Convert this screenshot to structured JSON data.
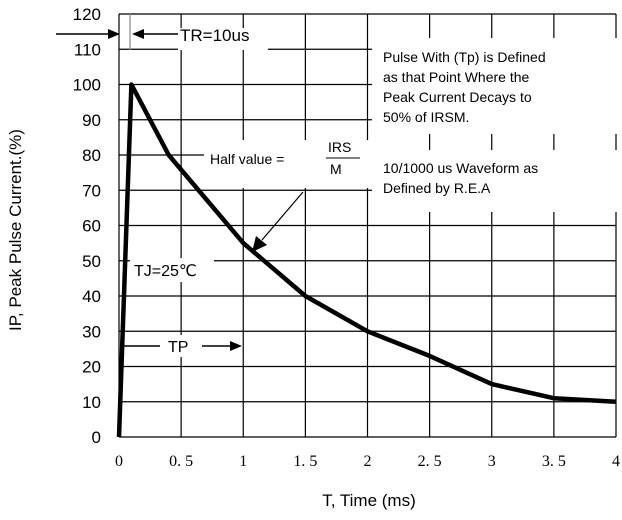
{
  "chart_data": {
    "type": "line",
    "xlabel": "T, Time (ms)",
    "ylabel": "IP, Peak Pulse Current.(%)",
    "xlim": [
      0,
      4
    ],
    "ylim": [
      0,
      120
    ],
    "x_ticks": [
      0,
      0.5,
      1,
      1.5,
      2,
      2.5,
      3,
      3.5,
      4
    ],
    "x_tick_labels": [
      "0",
      "0. 5",
      "1",
      "1. 5",
      "2",
      "2. 5",
      "3",
      "3. 5",
      "4"
    ],
    "y_ticks": [
      0,
      10,
      20,
      30,
      40,
      50,
      60,
      70,
      80,
      90,
      100,
      110,
      120
    ],
    "y_tick_labels": [
      "0",
      "10",
      "20",
      "30",
      "40",
      "50",
      "60",
      "70",
      "80",
      "90",
      "100",
      "110",
      "120"
    ],
    "grid": true,
    "series": [
      {
        "x": [
          0,
          0.1,
          0.4,
          1.0,
          1.5,
          2.0,
          2.5,
          3.0,
          3.5,
          4.0
        ],
        "y": [
          0,
          100,
          80,
          55,
          40,
          30,
          23,
          15,
          11,
          10
        ]
      }
    ],
    "annotations": {
      "tr_label": "TR=10us",
      "pulse_note": [
        "Pulse With (Tp) is Defined",
        "as that Point Where the",
        "Peak Current Decays to",
        "50% of  IRSM."
      ],
      "half_value_prefix": "Half value = ",
      "half_value_numerator": "IRS",
      "half_value_denominator": "M",
      "waveform_note": [
        "10/1000 us Waveform as",
        "Defined by R.E.A"
      ],
      "tj_label": "TJ=25℃",
      "tp_label": "TP"
    }
  }
}
